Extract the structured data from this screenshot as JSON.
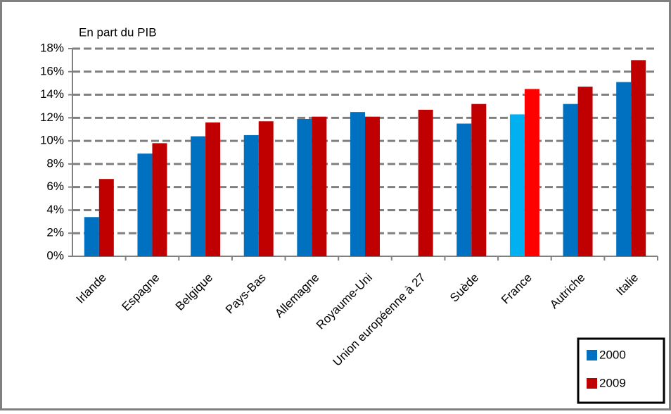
{
  "chart_data": {
    "type": "bar",
    "y_label": "En part du PIB",
    "categories": [
      "Irlande",
      "Espagne",
      "Belgique",
      "Pays-Bas",
      "Allemagne",
      "Royaume-Uni",
      "Union européenne à 27",
      "Suède",
      "France",
      "Autriche",
      "Italie"
    ],
    "series": [
      {
        "name": "2000",
        "color": "#0070c0",
        "colors": [
          "#0070c0",
          "#0070c0",
          "#0070c0",
          "#0070c0",
          "#0070c0",
          "#0070c0",
          "#0070c0",
          "#0070c0",
          "#00b0f0",
          "#0070c0",
          "#0070c0"
        ],
        "values": [
          3.4,
          8.9,
          10.4,
          10.5,
          11.9,
          12.5,
          null,
          11.5,
          12.3,
          13.2,
          15.1
        ]
      },
      {
        "name": "2009",
        "color": "#c00000",
        "colors": [
          "#c00000",
          "#c00000",
          "#c00000",
          "#c00000",
          "#c00000",
          "#c00000",
          "#c00000",
          "#c00000",
          "#ff0000",
          "#c00000",
          "#c00000"
        ],
        "values": [
          6.7,
          9.8,
          11.6,
          11.7,
          12.1,
          12.1,
          12.7,
          13.2,
          14.5,
          14.7,
          17.0
        ]
      }
    ],
    "ylim": [
      0,
      18
    ],
    "yticks": [
      {
        "value": 0,
        "label": "0%"
      },
      {
        "value": 2,
        "label": "2%"
      },
      {
        "value": 4,
        "label": "4%"
      },
      {
        "value": 6,
        "label": "6%"
      },
      {
        "value": 8,
        "label": "8%"
      },
      {
        "value": 10,
        "label": "10%"
      },
      {
        "value": 12,
        "label": "12%"
      },
      {
        "value": 14,
        "label": "14%"
      },
      {
        "value": 16,
        "label": "16%"
      },
      {
        "value": 18,
        "label": "18%"
      }
    ],
    "grid": true,
    "legend": "bottom-right"
  }
}
